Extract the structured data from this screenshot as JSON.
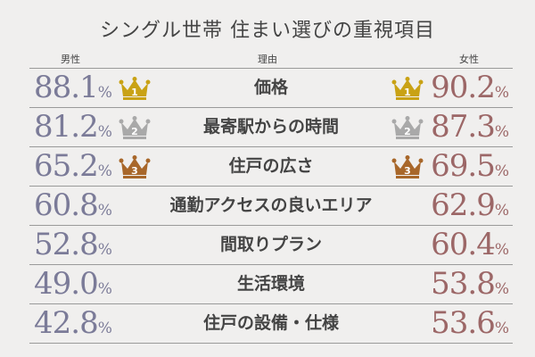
{
  "colors": {
    "men": "#7b7b98",
    "women": "#9c6767",
    "gold": "#c9a215",
    "silver": "#a9a9a9",
    "bronze": "#a8672a",
    "background": "#f0efee"
  },
  "chart_data": {
    "type": "table",
    "title": "シングル世帯 住まい選びの重視項目",
    "columns": [
      "男性",
      "理由",
      "女性"
    ],
    "unit": "%",
    "rows": [
      {
        "reason": "価格",
        "men": "88.1",
        "women": "90.2",
        "men_rank": "1",
        "women_rank": "1",
        "men_crown": "gold",
        "women_crown": "gold"
      },
      {
        "reason": "最寄駅からの時間",
        "men": "81.2",
        "women": "87.3",
        "men_rank": "2",
        "women_rank": "2",
        "men_crown": "silver",
        "women_crown": "silver"
      },
      {
        "reason": "住戸の広さ",
        "men": "65.2",
        "women": "69.5",
        "men_rank": "3",
        "women_rank": "3",
        "men_crown": "bronze",
        "women_crown": "bronze"
      },
      {
        "reason": "通勤アクセスの良いエリア",
        "men": "60.8",
        "women": "62.9"
      },
      {
        "reason": "間取りプラン",
        "men": "52.8",
        "women": "60.4"
      },
      {
        "reason": "生活環境",
        "men": "49.0",
        "women": "53.8"
      },
      {
        "reason": "住戸の設備・仕様",
        "men": "42.8",
        "women": "53.6"
      }
    ]
  }
}
